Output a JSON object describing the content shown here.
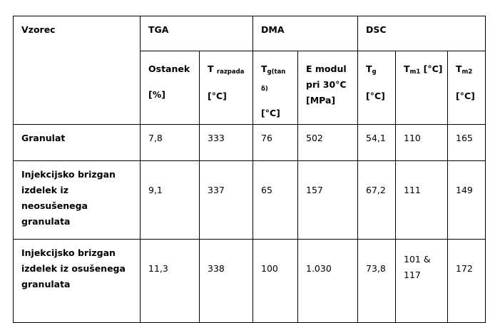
{
  "table": {
    "header": {
      "sample": "Vzorec",
      "tga": "TGA",
      "dma": "DMA",
      "dsc": "DSC"
    },
    "subheader": {
      "ostanek": "Ostanek",
      "ostanek_unit": "[%]",
      "t_main": "T",
      "t_sub": "razpada",
      "t_unit": "[°C]",
      "tg_main": "T",
      "tg_sub": "g(tan δ)",
      "tg_unit": "[°C]",
      "emod_line1": "E modul",
      "emod_line2": "pri 30°C",
      "emod_unit": "[MPa]",
      "dsc_tg_main": "T",
      "dsc_tg_sub": "g",
      "dsc_tg_unit": "[°C]",
      "tm1_main": "T",
      "tm1_sub": "m1",
      "tm1_unit": " [°C]",
      "tm2_main": "T",
      "tm2_sub": "m2",
      "tm2_unit": "[°C]"
    },
    "rows": [
      {
        "name_lines": [
          "Granulat"
        ],
        "values": [
          "7,8",
          "333",
          "76",
          "502",
          "54,1",
          "110",
          "165"
        ]
      },
      {
        "name_lines": [
          "Injekcijsko brizgan",
          "izdelek iz neosušenega",
          "granulata"
        ],
        "values": [
          "9,1",
          "337",
          "65",
          "157",
          "67,2",
          "111",
          "149"
        ]
      },
      {
        "name_lines": [
          "Injekcijsko brizgan",
          "izdelek iz osušenega",
          "granulata"
        ],
        "values": [
          "11,3",
          "338",
          "100",
          "1.030",
          "73,8",
          "101 &",
          "172"
        ],
        "tm1_extra": "117"
      }
    ]
  }
}
